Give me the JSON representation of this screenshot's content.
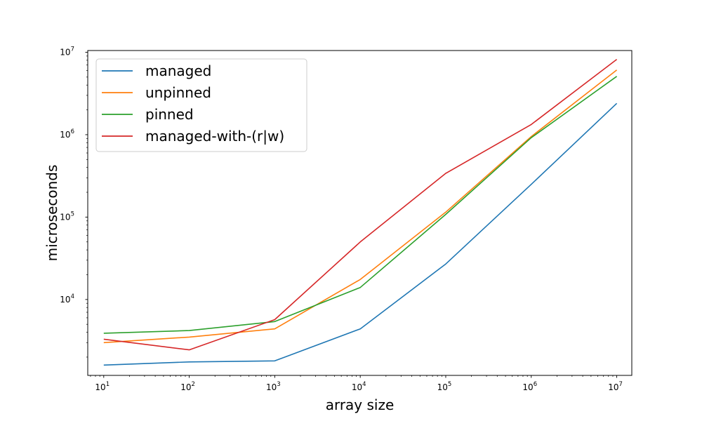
{
  "chart_data": {
    "type": "line",
    "xlabel": "array size",
    "ylabel": "microseconds",
    "x_scale": "log",
    "y_scale": "log",
    "xlim": [
      6.5,
      15000000
    ],
    "ylim": [
      1200,
      10500000
    ],
    "grid": false,
    "legend_position": "top-left",
    "x": [
      10,
      100,
      1000,
      10000,
      100000,
      1000000,
      10000000
    ],
    "x_tick_labels": [
      {
        "base": "10",
        "exp": "1"
      },
      {
        "base": "10",
        "exp": "2"
      },
      {
        "base": "10",
        "exp": "3"
      },
      {
        "base": "10",
        "exp": "4"
      },
      {
        "base": "10",
        "exp": "5"
      },
      {
        "base": "10",
        "exp": "6"
      },
      {
        "base": "10",
        "exp": "7"
      }
    ],
    "y_ticks": [
      10000,
      100000,
      1000000,
      10000000
    ],
    "y_tick_labels": [
      {
        "base": "10",
        "exp": "4"
      },
      {
        "base": "10",
        "exp": "5"
      },
      {
        "base": "10",
        "exp": "6"
      },
      {
        "base": "10",
        "exp": "7"
      }
    ],
    "series": [
      {
        "name": "managed",
        "color": "#1f77b4",
        "values": [
          1600,
          1750,
          1800,
          4400,
          27000,
          250000,
          2400000
        ]
      },
      {
        "name": "unpinned",
        "color": "#ff7f0e",
        "values": [
          3000,
          3500,
          4400,
          17500,
          115000,
          950000,
          6100000
        ]
      },
      {
        "name": "pinned",
        "color": "#2ca02c",
        "values": [
          3900,
          4200,
          5400,
          14000,
          108000,
          920000,
          5100000
        ]
      },
      {
        "name": "managed-with-(r|w)",
        "color": "#d62728",
        "values": [
          3300,
          2450,
          5700,
          50000,
          340000,
          1330000,
          8200000
        ]
      }
    ]
  }
}
